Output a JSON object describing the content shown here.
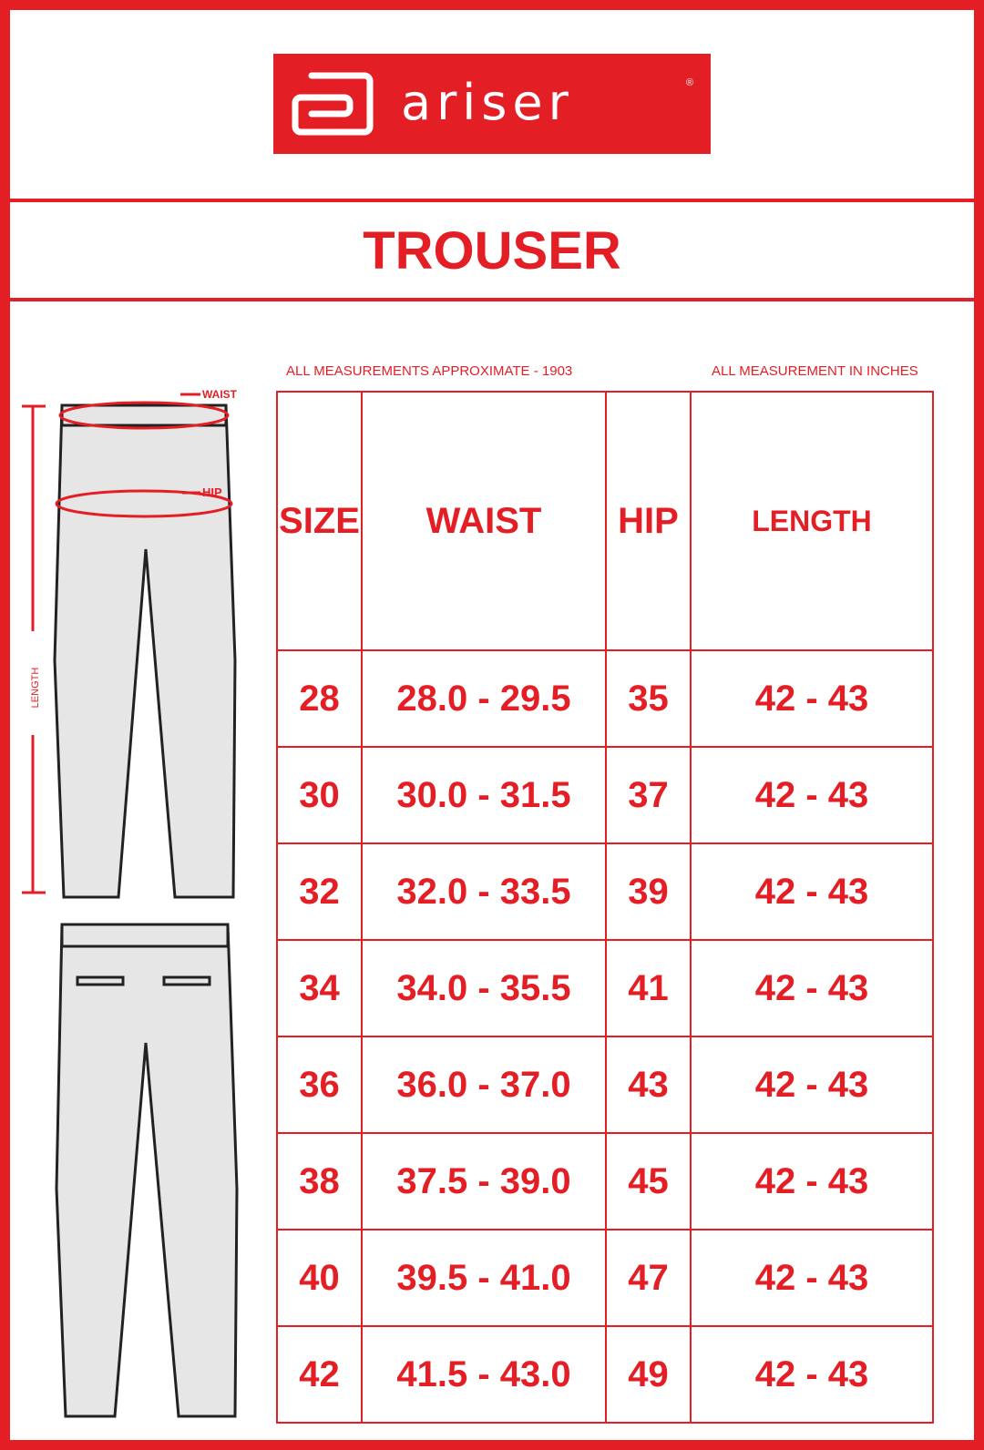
{
  "brand": {
    "name": "ariser",
    "registered": "®"
  },
  "title": "TROUSER",
  "notes": {
    "left": "ALL MEASUREMENTS APPROXIMATE - 1903",
    "right": "ALL MEASUREMENT IN INCHES"
  },
  "diagram_labels": {
    "waist": "WAIST",
    "hip": "HIP",
    "length": "LENGTH"
  },
  "table": {
    "headers": [
      "SIZE",
      "WAIST",
      "HIP",
      "LENGTH"
    ],
    "rows": [
      [
        "28",
        "28.0 - 29.5",
        "35",
        "42 - 43"
      ],
      [
        "30",
        "30.0 - 31.5",
        "37",
        "42 - 43"
      ],
      [
        "32",
        "32.0 - 33.5",
        "39",
        "42 - 43"
      ],
      [
        "34",
        "34.0 - 35.5",
        "41",
        "42 - 43"
      ],
      [
        "36",
        "36.0 - 37.0",
        "43",
        "42 - 43"
      ],
      [
        "38",
        "37.5 - 39.0",
        "45",
        "42 - 43"
      ],
      [
        "40",
        "39.5 - 41.0",
        "47",
        "42 - 43"
      ],
      [
        "42",
        "41.5 - 43.0",
        "49",
        "42 - 43"
      ]
    ]
  },
  "colors": {
    "accent": "#e31e25"
  }
}
